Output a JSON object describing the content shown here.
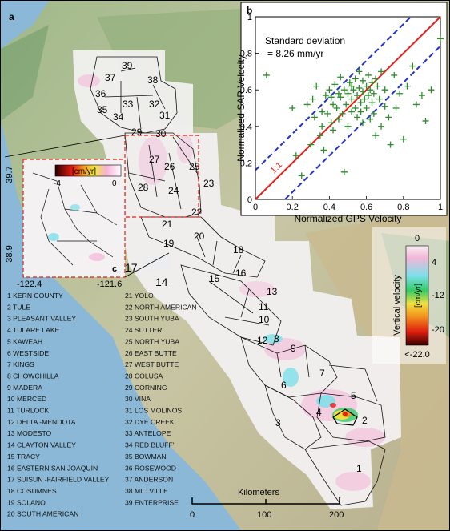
{
  "panel_a": {
    "label": "a"
  },
  "panel_b": {
    "label": "b",
    "annotation_line1": "Standard deviation",
    "annotation_line2": "= 8.26 mm/yr",
    "one_to_one_label": "1:1",
    "chart_data": {
      "type": "scatter",
      "title": "",
      "xlabel": "Normalized GPS Velocity",
      "ylabel": "Normalized SAR Velocity",
      "xlim": [
        0,
        1
      ],
      "ylim": [
        0,
        1
      ],
      "xticks": [
        "0",
        "0.2",
        "0.4",
        "0.6",
        "0.8",
        "1"
      ],
      "yticks": [
        "0",
        "0.2",
        "0.4",
        "0.6",
        "0.8",
        "1"
      ],
      "grid": false,
      "colors": {
        "points": "#2e8b2e",
        "one_to_one": "#e2231a",
        "bounds": "#2233cc"
      },
      "lines": [
        {
          "name": "1:1",
          "slope": 1,
          "intercept": 0,
          "style": "solid"
        },
        {
          "name": "upper bound",
          "slope": 1,
          "intercept": 0.16,
          "style": "dashed"
        },
        {
          "name": "lower bound",
          "slope": 1,
          "intercept": -0.16,
          "style": "dashed"
        }
      ],
      "points": [
        [
          0.06,
          0.68
        ],
        [
          0.2,
          0.5
        ],
        [
          0.22,
          0.24
        ],
        [
          0.25,
          0.13
        ],
        [
          0.28,
          0.52
        ],
        [
          0.3,
          0.3
        ],
        [
          0.31,
          0.55
        ],
        [
          0.32,
          0.45
        ],
        [
          0.33,
          0.62
        ],
        [
          0.35,
          0.35
        ],
        [
          0.36,
          0.48
        ],
        [
          0.37,
          0.27
        ],
        [
          0.38,
          0.57
        ],
        [
          0.39,
          0.47
        ],
        [
          0.4,
          0.6
        ],
        [
          0.41,
          0.42
        ],
        [
          0.42,
          0.52
        ],
        [
          0.42,
          0.38
        ],
        [
          0.43,
          0.63
        ],
        [
          0.44,
          0.5
        ],
        [
          0.45,
          0.44
        ],
        [
          0.46,
          0.56
        ],
        [
          0.46,
          0.67
        ],
        [
          0.47,
          0.47
        ],
        [
          0.48,
          0.15
        ],
        [
          0.48,
          0.6
        ],
        [
          0.49,
          0.52
        ],
        [
          0.5,
          0.4
        ],
        [
          0.5,
          0.58
        ],
        [
          0.51,
          0.64
        ],
        [
          0.52,
          0.48
        ],
        [
          0.52,
          0.55
        ],
        [
          0.53,
          0.6
        ],
        [
          0.54,
          0.5
        ],
        [
          0.54,
          0.66
        ],
        [
          0.55,
          0.45
        ],
        [
          0.55,
          0.57
        ],
        [
          0.56,
          0.61
        ],
        [
          0.57,
          0.53
        ],
        [
          0.57,
          0.48
        ],
        [
          0.58,
          0.59
        ],
        [
          0.58,
          0.65
        ],
        [
          0.59,
          0.55
        ],
        [
          0.6,
          0.62
        ],
        [
          0.6,
          0.5
        ],
        [
          0.61,
          0.57
        ],
        [
          0.61,
          0.68
        ],
        [
          0.62,
          0.6
        ],
        [
          0.62,
          0.44
        ],
        [
          0.63,
          0.64
        ],
        [
          0.63,
          0.53
        ],
        [
          0.64,
          0.58
        ],
        [
          0.65,
          0.66
        ],
        [
          0.65,
          0.35
        ],
        [
          0.66,
          0.62
        ],
        [
          0.67,
          0.55
        ],
        [
          0.68,
          0.4
        ],
        [
          0.68,
          0.7
        ],
        [
          0.7,
          0.6
        ],
        [
          0.72,
          0.45
        ],
        [
          0.73,
          0.3
        ],
        [
          0.75,
          0.68
        ],
        [
          0.76,
          0.5
        ],
        [
          0.8,
          0.33
        ],
        [
          0.82,
          0.62
        ],
        [
          0.85,
          0.73
        ],
        [
          0.87,
          0.52
        ],
        [
          0.9,
          0.57
        ],
        [
          0.92,
          0.43
        ],
        [
          0.95,
          0.6
        ],
        [
          1.0,
          0.88
        ],
        [
          0.45,
          0.58
        ],
        [
          0.52,
          0.62
        ],
        [
          0.58,
          0.42
        ],
        [
          0.64,
          0.47
        ],
        [
          0.7,
          0.51
        ],
        [
          0.78,
          0.58
        ],
        [
          0.36,
          0.4
        ],
        [
          0.41,
          0.56
        ],
        [
          0.56,
          0.7
        ]
      ]
    }
  },
  "panel_c": {
    "label": "c",
    "lat_top": "39.7",
    "lat_bottom": "38.9",
    "lon_left": "-122.4",
    "lon_right": "-121.6",
    "scale_title": "[cm/yr]",
    "scale_min": "-4",
    "scale_max": "0"
  },
  "colorbar": {
    "title": "Vertical velocity",
    "unit": "[cm/yr]",
    "ticks": [
      "0",
      "4",
      "-12",
      "-20",
      "<-22.0"
    ],
    "colors": [
      "#f6f0f2",
      "#f4b6d8",
      "#7de0ea",
      "#33cc66",
      "#f0e040",
      "#f39a1f",
      "#e02010",
      "#3a0000"
    ]
  },
  "scale_bar": {
    "title": "Kilometers",
    "ticks": [
      "0",
      "100",
      "200"
    ]
  },
  "basin_legend_left": [
    "1   KERN COUNTY",
    "2   TULE",
    "3   PLEASANT VALLEY",
    "4   TULARE LAKE",
    "5   KAWEAH",
    "6   WESTSIDE",
    "7   KINGS",
    "8   CHOWCHILLA",
    "9   MADERA",
    "10   MERCED",
    "11   TURLOCK",
    "12   DELTA -MENDOTA",
    "13   MODESTO",
    "14   CLAYTON VALLEY",
    "15   TRACY",
    "16   EASTERN SAN JOAQUIN",
    "17   SUISUN -FAIRFIELD VALLEY",
    "18   COSUMNES",
    "19   SOLANO",
    "20   SOUTH AMERICAN"
  ],
  "basin_legend_right": [
    "21  YOLO",
    "22  NORTH AMERICAN",
    "23  SOUTH YUBA",
    "24  SUTTER",
    "25  NORTH YUBA",
    "26  EAST BUTTE",
    "27  WEST BUTTE",
    "28  COLUSA",
    "29  CORNING",
    "30  VINA",
    "31  LOS MOLINOS",
    "32  DYE CREEK",
    "33  ANTELOPE",
    "34  RED BLUFF'",
    "35  BOWMAN",
    "36  ROSEWOOD",
    "37  ANDERSON",
    "38  MILLVILLE",
    "39  ENTERPRISE"
  ],
  "basin_numbers": [
    "1",
    "2",
    "3",
    "4",
    "5",
    "6",
    "7",
    "8",
    "9",
    "10",
    "11",
    "12",
    "13",
    "14",
    "15",
    "16",
    "17",
    "18",
    "19",
    "20",
    "21",
    "22",
    "23",
    "24",
    "25",
    "26",
    "27",
    "28",
    "29",
    "30",
    "31",
    "32",
    "33",
    "34",
    "35",
    "36",
    "37",
    "38",
    "39"
  ]
}
